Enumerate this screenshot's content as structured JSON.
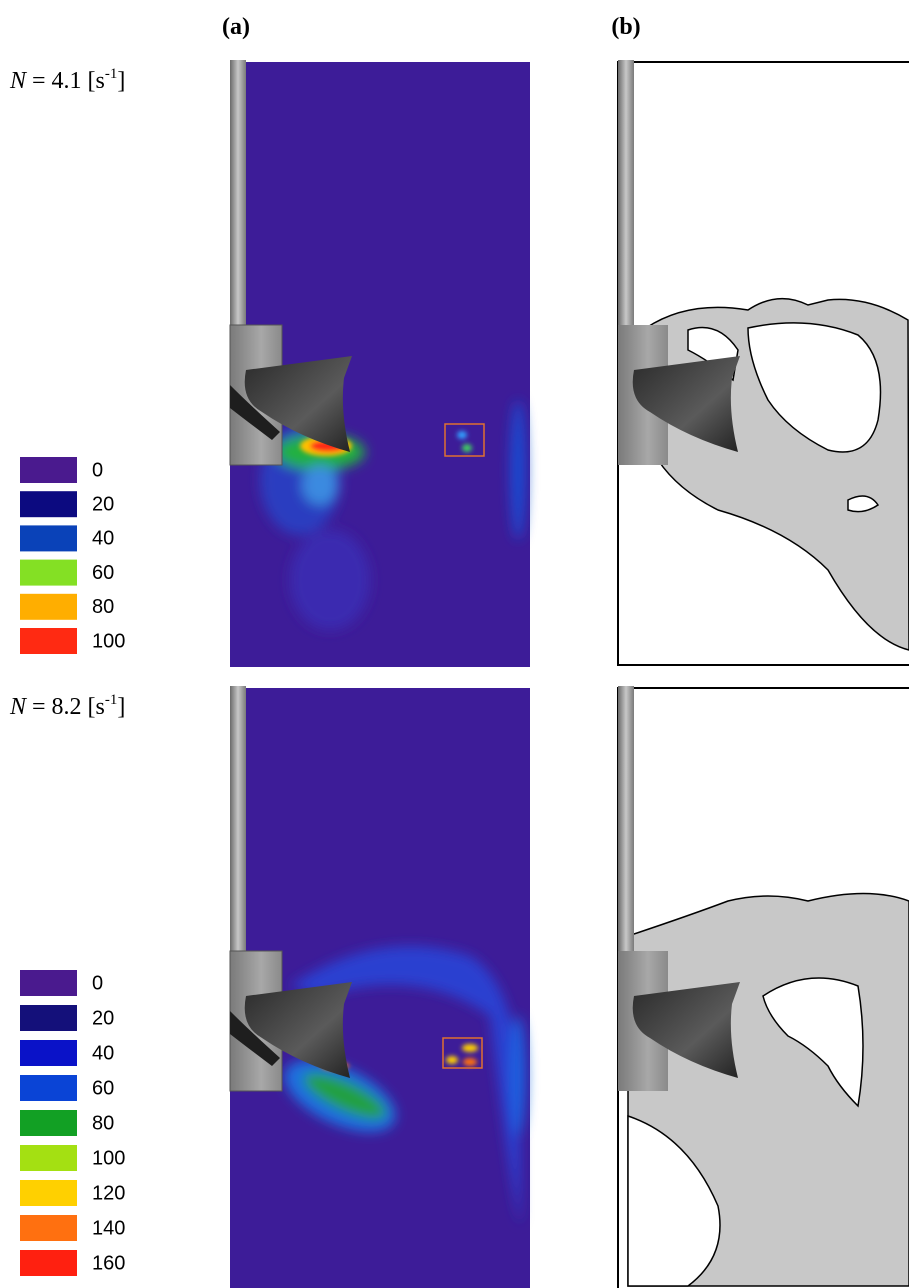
{
  "panels": [
    "(a)",
    "(b)"
  ],
  "rows": [
    {
      "variable": "N",
      "equals": "= 4.1 [s",
      "exponent": "-1",
      "close": "]",
      "legend": [
        {
          "label": "0",
          "color": "#4a1a8e"
        },
        {
          "label": "20",
          "color": "#0c0a80"
        },
        {
          "label": "40",
          "color": "#0a42b8"
        },
        {
          "label": "60",
          "color": "#84e024"
        },
        {
          "label": "80",
          "color": "#ffae00"
        },
        {
          "label": "100",
          "color": "#ff2a12"
        }
      ]
    },
    {
      "variable": "N",
      "equals": "= 8.2 [s",
      "exponent": "-1",
      "close": "]",
      "legend": [
        {
          "label": "0",
          "color": "#4a1a8e"
        },
        {
          "label": "20",
          "color": "#14107a"
        },
        {
          "label": "40",
          "color": "#0a12c8"
        },
        {
          "label": "60",
          "color": "#0a44d6"
        },
        {
          "label": "80",
          "color": "#12a024"
        },
        {
          "label": "100",
          "color": "#a4e012"
        },
        {
          "label": "120",
          "color": "#ffd000"
        },
        {
          "label": "140",
          "color": "#ff7010"
        },
        {
          "label": "160",
          "color": "#ff2010"
        }
      ]
    }
  ]
}
